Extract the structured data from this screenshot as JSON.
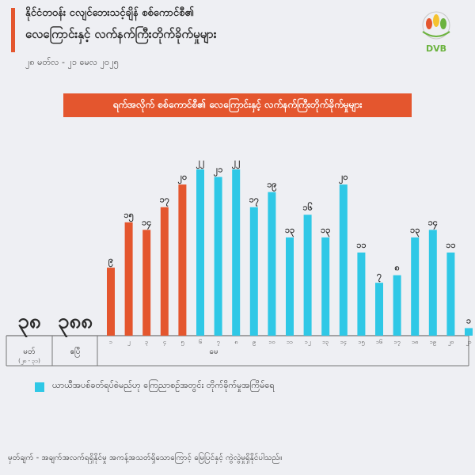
{
  "header": {
    "title_line1": "နိုင်ငံတဝန်း ငလျင်ဘေးသင့်ချိန် စစ်ကောင်စီ၏",
    "title_line2": "လေကြောင်းနှင့် လက်နက်ကြီးတိုက်ခိုက်မှုများ",
    "date_range": "၂၈ မတ်လ - ၂၁ မေလ ၂၀၂၅"
  },
  "logo": {
    "text": "DVB"
  },
  "colors": {
    "accent": "#e4562e",
    "bar_april": "#e4562e",
    "bar_may": "#2fc8e6",
    "text_dark": "#2b2b2b"
  },
  "banner": {
    "text": "ရက်အလိုက် စစ်ကောင်စီ၏ လေကြောင်းနှင့် လက်နက်ကြီးတိုက်ခိုက်မှုများ"
  },
  "chart_data": {
    "type": "bar",
    "title": "ရက်အလိုက် စစ်ကောင်စီ၏ လေကြောင်းနှင့် လက်နက်ကြီးတိုက်ခိုက်မှုများ",
    "totals": [
      {
        "period": "မတ်",
        "period_note": "(၂၈ - ၃၁)",
        "value_label": "၃၈"
      },
      {
        "period": "ဧပြီ",
        "value_label": "၃၈၈"
      }
    ],
    "month_label": "မေ",
    "categories": [
      "၁",
      "၂",
      "၃",
      "၄",
      "၅",
      "၆",
      "၇",
      "၈",
      "၉",
      "၁၀",
      "၁၁",
      "၁၂",
      "၁၃",
      "၁၄",
      "၁၅",
      "၁၆",
      "၁၇",
      "၁၈",
      "၁၉",
      "၂၀",
      "၂၁"
    ],
    "values": [
      9,
      15,
      14,
      17,
      20,
      22,
      21,
      22,
      17,
      19,
      13,
      16,
      13,
      20,
      11,
      7,
      8,
      13,
      14,
      11,
      1
    ],
    "value_labels": [
      "၉",
      "၁၅",
      "၁၄",
      "၁၇",
      "၂၀",
      "၂၂",
      "၂၁",
      "၂၂",
      "၁၇",
      "၁၉",
      "၁၃",
      "၁၆",
      "၁၃",
      "၂၀",
      "၁၁",
      "၇",
      "၈",
      "၁၃",
      "၁၄",
      "၁၁",
      "၁"
    ],
    "series_color_split_index": 5,
    "ylim": [
      0,
      22
    ],
    "legend": [
      {
        "label": "ယာယီအပစ်ခတ်ရပ်စဲမည်ဟု ကြေညာစဉ်အတွင်း တိုက်ခိုက်မှုအကြိမ်ရေ",
        "color": "#2fc8e6"
      }
    ]
  },
  "footnote": "မှတ်ချက် - အချက်အလက်ရရှိနိုင်မှု အကန့်အသတ်ရှိသောကြောင့် မြေပြင်နှင့် ကွဲလွဲမှုရှိနိုင်ပါသည်။"
}
